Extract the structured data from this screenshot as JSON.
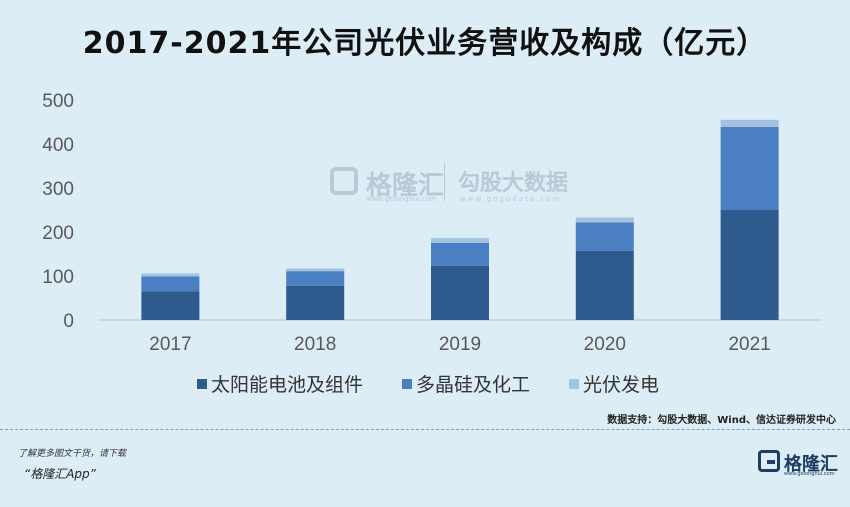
{
  "title": "2017-2021年公司光伏业务营收及构成（亿元）",
  "chart_data": {
    "type": "bar",
    "stacked": true,
    "categories": [
      "2017",
      "2018",
      "2019",
      "2020",
      "2021"
    ],
    "series": [
      {
        "name": "太阳能电池及组件",
        "color": "#2e5a8e",
        "values": [
          65,
          78,
          123,
          157,
          250
        ]
      },
      {
        "name": "多晶硅及化工",
        "color": "#4a7fc1",
        "values": [
          34,
          33,
          52,
          65,
          189
        ]
      },
      {
        "name": "光伏发电",
        "color": "#a3c2e0",
        "values": [
          7,
          6,
          11,
          11,
          16
        ]
      }
    ],
    "yticks": [
      0,
      100,
      200,
      300,
      400,
      500
    ],
    "ylim": [
      0,
      500
    ],
    "grid": false,
    "legend_position": "bottom"
  },
  "watermark": {
    "name": "格隆汇",
    "url": "www.gelonghui.com",
    "name2": "勾股大数据",
    "url2": "www.gogudata.com"
  },
  "source": "数据支持：勾股大数据、Wind、信达证券研发中心",
  "footer": {
    "promo_line1": "了解更多图文干货，请下载",
    "promo_line2": "“格隆汇App”",
    "logo_name": "格隆汇",
    "logo_url": "www.gelonghui.com"
  }
}
